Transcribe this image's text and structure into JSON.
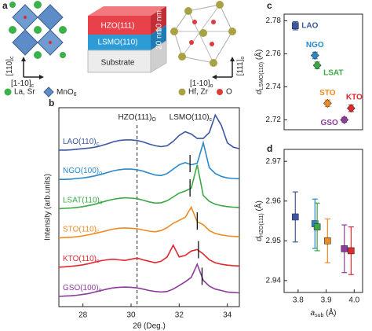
{
  "panel_a": {
    "label": "a",
    "left_axes": [
      {
        "text": "[110]",
        "sub": "c"
      },
      {
        "text": "[1-10]",
        "sub": "c"
      }
    ],
    "left_legend": [
      {
        "text": "La, Sr"
      },
      {
        "text": "MnO",
        "sub": "6"
      }
    ],
    "layers": [
      {
        "name": "HZO(111)",
        "thickness": "10 nm"
      },
      {
        "name": "LSMO(110)",
        "thickness": "20 nm"
      },
      {
        "name": "Substrate"
      }
    ],
    "right_axes": [
      {
        "text": "[111]",
        "sub": "o"
      },
      {
        "text": "[1-10]",
        "sub": "o"
      }
    ],
    "right_legend": [
      {
        "text": "Hf, Zr"
      },
      {
        "text": "O"
      }
    ]
  },
  "chart_data": [
    {
      "type": "line",
      "panel": "b",
      "xlabel": "2θ (Deg.)",
      "ylabel": "Intensity (arb.units)",
      "annotations": [
        {
          "text": "HZO(111)",
          "sub": "O"
        },
        {
          "text": "LSMO(110)",
          "sub": "c"
        }
      ],
      "reference_line": 30.25,
      "xlim": [
        27,
        34.5
      ],
      "xticks": [
        28,
        30,
        32,
        34
      ],
      "ylim": [
        0,
        6.8
      ],
      "x": [
        27,
        27.25,
        27.5,
        27.75,
        28,
        28.25,
        28.5,
        28.75,
        29,
        29.25,
        29.5,
        29.75,
        30,
        30.25,
        30.5,
        30.75,
        31,
        31.25,
        31.5,
        31.75,
        32,
        32.25,
        32.5,
        32.75,
        33,
        33.25,
        33.5,
        33.75,
        34,
        34.25,
        34.5
      ],
      "series": [
        {
          "name": "LAO(110)",
          "sub": "c",
          "color": "#3b56a3",
          "values": [
            5.35,
            5.35,
            5.36,
            5.38,
            5.4,
            5.42,
            5.45,
            5.5,
            5.56,
            5.63,
            5.68,
            5.7,
            5.7,
            5.68,
            5.63,
            5.56,
            5.5,
            5.47,
            5.5,
            5.65,
            5.85,
            5.98,
            5.9,
            5.75,
            5.75,
            5.95,
            6.55,
            6.2,
            5.6,
            5.45,
            5.4
          ]
        },
        {
          "name": "NGO(100)",
          "sub": "o",
          "color": "#2a88c8",
          "peak": 32.45,
          "values": [
            4.35,
            4.35,
            4.36,
            4.38,
            4.4,
            4.43,
            4.47,
            4.52,
            4.58,
            4.64,
            4.68,
            4.7,
            4.7,
            4.68,
            4.63,
            4.56,
            4.5,
            4.48,
            4.55,
            4.7,
            4.85,
            4.92,
            4.85,
            4.9,
            5.6,
            4.75,
            4.55,
            4.45,
            4.4,
            4.38,
            4.37
          ]
        },
        {
          "name": "LSAT(110)",
          "sub": "c",
          "color": "#3aa845",
          "peak": 32.45,
          "values": [
            3.35,
            3.36,
            3.37,
            3.39,
            3.42,
            3.46,
            3.5,
            3.56,
            3.62,
            3.67,
            3.7,
            3.72,
            3.71,
            3.69,
            3.64,
            3.58,
            3.54,
            3.55,
            3.62,
            3.75,
            3.88,
            3.95,
            4.05,
            4.85,
            3.8,
            3.6,
            3.5,
            3.45,
            3.42,
            3.4,
            3.39
          ]
        },
        {
          "name": "STO(110)",
          "sub": "c",
          "color": "#ef8a22",
          "peak": 32.75,
          "values": [
            2.35,
            2.36,
            2.37,
            2.39,
            2.42,
            2.46,
            2.5,
            2.55,
            2.6,
            2.65,
            2.68,
            2.69,
            2.68,
            2.66,
            2.62,
            2.58,
            2.56,
            2.6,
            2.7,
            2.85,
            2.95,
            3.05,
            3.4,
            2.9,
            2.8,
            2.6,
            2.5,
            2.45,
            2.42,
            2.4,
            2.39
          ]
        },
        {
          "name": "KTO(110)",
          "sub": "c",
          "color": "#e0282e",
          "peak": 32.8,
          "values": [
            1.35,
            1.36,
            1.38,
            1.4,
            1.43,
            1.47,
            1.52,
            1.57,
            1.6,
            1.62,
            1.6,
            1.58,
            1.62,
            1.66,
            1.6,
            1.55,
            1.5,
            1.55,
            1.7,
            2.1,
            1.7,
            1.75,
            1.9,
            1.95,
            1.8,
            1.6,
            1.5,
            1.45,
            1.42,
            1.4,
            1.39
          ]
        },
        {
          "name": "GSO(100)",
          "sub": "o",
          "color": "#8b3c9c",
          "peak": 32.95,
          "values": [
            0.35,
            0.36,
            0.37,
            0.39,
            0.42,
            0.45,
            0.5,
            0.55,
            0.6,
            0.64,
            0.66,
            0.67,
            0.66,
            0.64,
            0.6,
            0.55,
            0.52,
            0.5,
            0.52,
            0.6,
            0.72,
            0.85,
            1.0,
            1.45,
            0.9,
            0.7,
            0.6,
            0.55,
            0.5,
            0.48,
            0.47
          ]
        }
      ]
    },
    {
      "type": "scatter",
      "panel": "c",
      "ylabel": "d",
      "ylabel_sub": "LSMO(110)",
      "ylabel_unit": " (Å)",
      "marker": "diamond",
      "point_labels": true,
      "xlim": [
        3.75,
        4.03
      ],
      "ylim": [
        2.714,
        2.784
      ],
      "yticks": [
        2.72,
        2.74,
        2.76,
        2.78
      ],
      "series": [
        {
          "name": "LAO",
          "color": "#3b56a3",
          "x": [
            3.79
          ],
          "values": [
            2.777
          ],
          "errors": [
            0.0025
          ]
        },
        {
          "name": "NGO",
          "color": "#2a88c8",
          "x": [
            3.86
          ],
          "values": [
            2.759
          ],
          "errors": [
            0.002
          ]
        },
        {
          "name": "LSAT",
          "color": "#3aa845",
          "x": [
            3.868
          ],
          "values": [
            2.753
          ],
          "errors": [
            0.002
          ]
        },
        {
          "name": "STO",
          "color": "#ef8a22",
          "x": [
            3.905
          ],
          "values": [
            2.73
          ],
          "errors": [
            0.002
          ]
        },
        {
          "name": "KTO",
          "color": "#e0282e",
          "x": [
            3.989
          ],
          "values": [
            2.727
          ],
          "errors": [
            0.002
          ]
        },
        {
          "name": "GSO",
          "color": "#8b3c9c",
          "x": [
            3.965
          ],
          "values": [
            2.72
          ],
          "errors": [
            0.0015
          ]
        }
      ]
    },
    {
      "type": "scatter",
      "panel": "d",
      "ylabel": "d",
      "ylabel_sub": "HZO(111)",
      "ylabel_unit": " (Å)",
      "xlabel": "a",
      "xlabel_sub": "sub",
      "xlabel_unit": " (Å)",
      "marker": "square",
      "point_labels": false,
      "xlim": [
        3.75,
        4.03
      ],
      "xticks": [
        3.8,
        3.9,
        {
          "value": 4,
          "label": "4.0"
        }
      ],
      "ylim": [
        2.937,
        2.973
      ],
      "yticks": [
        2.94,
        2.95,
        2.96,
        2.97
      ],
      "series": [
        {
          "name": "LAO",
          "color": "#3b56a3",
          "x": [
            3.79
          ],
          "values": [
            2.956
          ],
          "errors": [
            0.0063
          ]
        },
        {
          "name": "NGO",
          "color": "#2a88c8",
          "x": [
            3.86
          ],
          "values": [
            2.9543
          ],
          "errors": [
            0.0062
          ]
        },
        {
          "name": "LSAT",
          "color": "#3aa845",
          "x": [
            3.868
          ],
          "values": [
            2.9535
          ],
          "errors": [
            0.006
          ]
        },
        {
          "name": "STO",
          "color": "#ef8a22",
          "x": [
            3.905
          ],
          "values": [
            2.95
          ],
          "errors": [
            0.0055
          ]
        },
        {
          "name": "GSO",
          "color": "#8b3c9c",
          "x": [
            3.965
          ],
          "values": [
            2.948
          ],
          "errors": [
            0.006
          ]
        },
        {
          "name": "KTO",
          "color": "#e0282e",
          "x": [
            3.989
          ],
          "values": [
            2.9475
          ],
          "errors": [
            0.006
          ]
        }
      ]
    }
  ]
}
